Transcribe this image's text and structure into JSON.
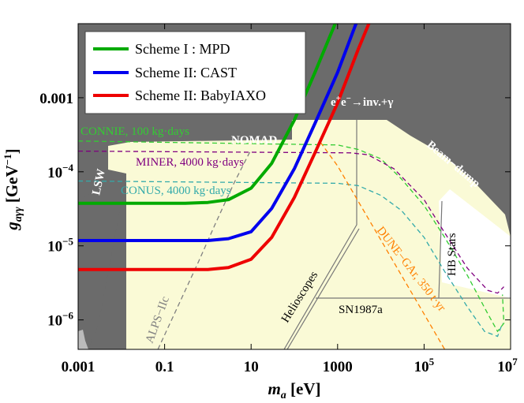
{
  "chart_data": {
    "type": "line",
    "x_scale": "log",
    "y_scale": "log",
    "xlim": [
      0.001,
      10000000
    ],
    "ylim": [
      4e-07,
      0.01
    ],
    "xlabel_main": "m",
    "xlabel_sub": "a",
    "xlabel_unit": " [eV]",
    "ylabel_main": "g",
    "ylabel_sub": "aγγ",
    "ylabel_unit_open": " [GeV",
    "ylabel_unit_exp": "−1",
    "ylabel_unit_close": "]",
    "x_ticks": [
      {
        "value": 0.001,
        "label": "0.001"
      },
      {
        "value": 0.1,
        "label": "0.1"
      },
      {
        "value": 10,
        "label": "10"
      },
      {
        "value": 1000,
        "label": "1000"
      },
      {
        "value": 100000,
        "base": "10",
        "exp": "5"
      },
      {
        "value": 10000000,
        "base": "10",
        "exp": "7"
      }
    ],
    "y_ticks": [
      {
        "value": 0.001,
        "label": "0.001"
      },
      {
        "value": 0.0001,
        "base": "10",
        "exp": "−4"
      },
      {
        "value": 1e-05,
        "base": "10",
        "exp": "−5"
      },
      {
        "value": 1e-06,
        "base": "10",
        "exp": "−6"
      }
    ],
    "series": [
      {
        "name": "Scheme I : MPD",
        "color": "#00aa00",
        "points": [
          [
            0.001,
            3.75e-05
          ],
          [
            0.3,
            3.75e-05
          ],
          [
            1,
            3.85e-05
          ],
          [
            3,
            4.2e-05
          ],
          [
            10,
            6e-05
          ],
          [
            30,
            0.00013
          ],
          [
            100,
            0.0005
          ],
          [
            300,
            0.0022
          ],
          [
            1000,
            0.012
          ]
        ]
      },
      {
        "name": "Scheme II: CAST",
        "color": "#0000ee",
        "points": [
          [
            0.001,
            1.18e-05
          ],
          [
            1,
            1.18e-05
          ],
          [
            3,
            1.25e-05
          ],
          [
            10,
            1.55e-05
          ],
          [
            30,
            3.2e-05
          ],
          [
            100,
            0.00011
          ],
          [
            300,
            0.00045
          ],
          [
            1000,
            0.0022
          ],
          [
            3000,
            0.012
          ]
        ]
      },
      {
        "name": "Scheme II: BabyIAXO",
        "color": "#ee0000",
        "points": [
          [
            0.001,
            4.8e-06
          ],
          [
            1,
            4.8e-06
          ],
          [
            3,
            5.1e-06
          ],
          [
            10,
            6.6e-06
          ],
          [
            30,
            1.3e-05
          ],
          [
            100,
            4.5e-05
          ],
          [
            300,
            0.00018
          ],
          [
            1000,
            0.00085
          ],
          [
            3000,
            0.0045
          ],
          [
            6000,
            0.012
          ]
        ]
      }
    ],
    "regions": [
      {
        "name": "excluded-gray",
        "color": "#6b6b6b"
      },
      {
        "name": "allowed-yellow",
        "color": "#fafad6"
      }
    ],
    "reference_lines": [
      {
        "name": "CONNIE, 100 kg·days",
        "color": "#33cc33",
        "points": [
          [
            0.001,
            0.00026
          ],
          [
            1000,
            0.00023
          ],
          [
            3000,
            0.0002
          ],
          [
            10000,
            0.00015
          ],
          [
            30000,
            8e-05
          ],
          [
            100000,
            3.5e-05
          ],
          [
            300000,
            1.3e-05
          ],
          [
            1000000,
            4e-06
          ],
          [
            3000000,
            1.2e-06
          ],
          [
            5000000,
            7e-07
          ],
          [
            7000000,
            9e-07
          ],
          [
            6500000,
            2.2e-06
          ]
        ]
      },
      {
        "name": "MINER, 4000 kg·days",
        "color": "#800080",
        "points": [
          [
            0.001,
            0.00019
          ],
          [
            2000,
            0.00018
          ],
          [
            5000,
            0.00017
          ],
          [
            20000,
            0.00011
          ],
          [
            100000,
            4.2e-05
          ],
          [
            300000,
            1.5e-05
          ],
          [
            1000000,
            5e-06
          ],
          [
            3000000,
            2.5e-06
          ],
          [
            5000000,
            2.3e-06
          ],
          [
            7000000,
            2.8e-06
          ]
        ]
      },
      {
        "name": "CONUS, 4000 kg·days",
        "color": "#33aaaa",
        "points": [
          [
            0.001,
            7.5e-05
          ],
          [
            1000,
            7e-05
          ],
          [
            3000,
            6.5e-05
          ],
          [
            10000,
            4.8e-05
          ],
          [
            30000,
            3e-05
          ],
          [
            100000,
            1.3e-05
          ],
          [
            300000,
            4.5e-06
          ],
          [
            1000000,
            1.5e-06
          ],
          [
            2500000,
            7e-07
          ],
          [
            5000000,
            6e-07
          ],
          [
            6500000,
            9e-07
          ]
        ]
      },
      {
        "name": "DUNE-GAr, 350 t·yr",
        "color": "#ff8000",
        "points": [
          [
            400,
            0.00025
          ],
          [
            1000,
            0.00012
          ],
          [
            3000,
            4e-05
          ],
          [
            10000,
            1.2e-05
          ],
          [
            30000,
            4e-06
          ],
          [
            100000,
            1.2e-06
          ],
          [
            300000,
            4e-07
          ]
        ]
      },
      {
        "name": "ALPS-IIc",
        "color": "#808080",
        "points": [
          [
            0.07,
            4e-07
          ],
          [
            0.2,
            1.5e-06
          ],
          [
            0.6,
            6e-06
          ],
          [
            1.5,
            2e-05
          ],
          [
            4,
            7e-05
          ],
          [
            10,
            0.0002
          ]
        ]
      }
    ],
    "annotations": [
      {
        "text": "CONNIE, 100 kg·days",
        "color": "#33cc33"
      },
      {
        "text": "NOMAD",
        "color": "#ffffff"
      },
      {
        "text": "MINER, 4000 kg·days",
        "color": "#800080"
      },
      {
        "text": "CONUS, 4000 kg·days",
        "color": "#33aaaa"
      },
      {
        "text": "LSW",
        "color": "#ffffff"
      },
      {
        "text": "Beam−dump",
        "color": "#ffffff"
      },
      {
        "text": "HB Stars",
        "color": "#000000"
      },
      {
        "text": "DUNE−GAr, 350 t·yr",
        "color": "#ff8000"
      },
      {
        "text": "Helioscopes",
        "color": "#000000"
      },
      {
        "text": "SN1987a",
        "color": "#000000"
      },
      {
        "text": "ALPS−IIc",
        "color": "#808080"
      }
    ],
    "process_label": {
      "e1": "e",
      "sup1": "+",
      "e2": "e",
      "sup2": "−",
      "rest": "→inv.+γ"
    }
  }
}
